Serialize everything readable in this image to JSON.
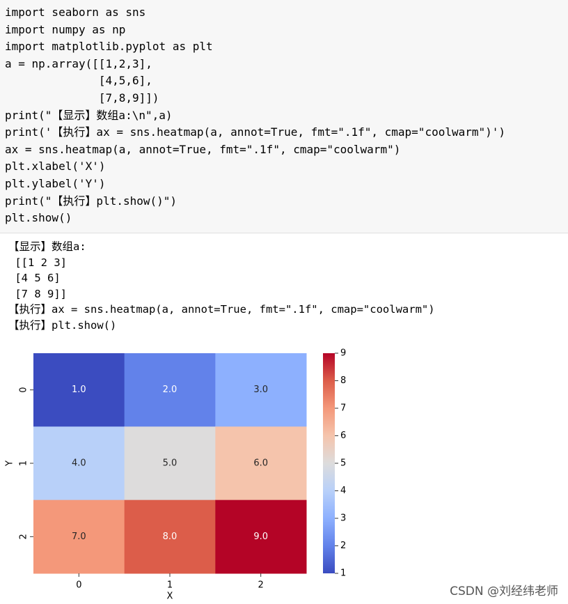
{
  "code": {
    "lines": [
      "import seaborn as sns",
      "import numpy as np",
      "import matplotlib.pyplot as plt",
      "a = np.array([[1,2,3],",
      "              [4,5,6],",
      "              [7,8,9]])",
      "print(\"【显示】数组a:\\n\",a)",
      "print('【执行】ax = sns.heatmap(a, annot=True, fmt=\".1f\", cmap=\"coolwarm\")')",
      "ax = sns.heatmap(a, annot=True, fmt=\".1f\", cmap=\"coolwarm\")",
      "plt.xlabel('X')",
      "plt.ylabel('Y')",
      "print(\"【执行】plt.show()\")",
      "plt.show()"
    ]
  },
  "output": {
    "lines": [
      "【显示】数组a:",
      " [[1 2 3]",
      " [4 5 6]",
      " [7 8 9]]",
      "【执行】ax = sns.heatmap(a, annot=True, fmt=\".1f\", cmap=\"coolwarm\")",
      "【执行】plt.show()"
    ]
  },
  "chart_data": {
    "type": "heatmap",
    "x_categories": [
      "0",
      "1",
      "2"
    ],
    "y_categories": [
      "0",
      "1",
      "2"
    ],
    "values": [
      [
        1,
        2,
        3
      ],
      [
        4,
        5,
        6
      ],
      [
        7,
        8,
        9
      ]
    ],
    "value_labels": [
      [
        "1.0",
        "2.0",
        "3.0"
      ],
      [
        "4.0",
        "5.0",
        "6.0"
      ],
      [
        "7.0",
        "8.0",
        "9.0"
      ]
    ],
    "xlabel": "X",
    "ylabel": "Y",
    "colormap": "coolwarm",
    "clim": [
      1,
      9
    ],
    "cticks": [
      1,
      2,
      3,
      4,
      5,
      6,
      7,
      8,
      9
    ]
  },
  "watermark": "CSDN @刘经纬老师"
}
